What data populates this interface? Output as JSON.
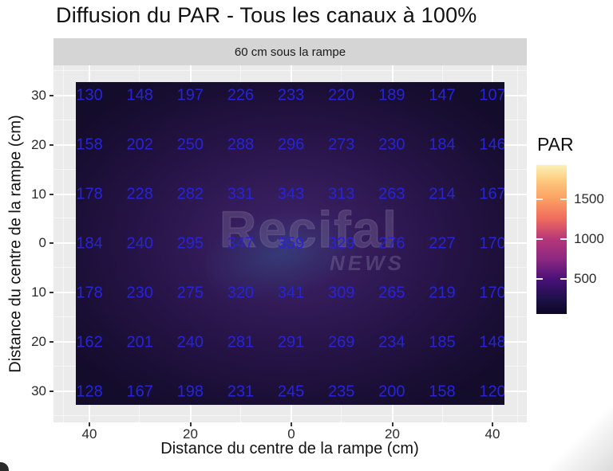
{
  "title": "Diffusion du PAR - Tous les canaux à 100%",
  "facet_label": "60 cm sous la rampe",
  "x_axis": {
    "title": "Distance du centre de la rampe (cm)",
    "ticks": [
      "40",
      "20",
      "0",
      "20",
      "40"
    ]
  },
  "y_axis": {
    "title": "Distance du centre de la rampe (cm)",
    "ticks": [
      "30",
      "20",
      "10",
      "0",
      "10",
      "20",
      "30"
    ]
  },
  "legend": {
    "title": "PAR",
    "ticks": [
      "1500",
      "1000",
      "500"
    ]
  },
  "watermark": {
    "text": "Recifal",
    "subtext": "NEWS"
  },
  "colors": {
    "value_text": "#2525d6",
    "panel_bg": "#ebebeb",
    "strip_bg": "#d5d5d5",
    "raster_center": "#3e2568",
    "raster_edge": "#140c2b",
    "legend_top": "#fcf1b6",
    "legend_1500": "#fb9f62",
    "legend_1000": "#b63679",
    "legend_500": "#481078",
    "legend_bottom": "#0b0723"
  },
  "chart_data": {
    "type": "heatmap",
    "title": "Diffusion du PAR - Tous les canaux à 100%",
    "facet": "60 cm sous la rampe",
    "xlabel": "Distance du centre de la rampe (cm)",
    "ylabel": "Distance du centre de la rampe (cm)",
    "x": [
      -40,
      -30,
      -20,
      -10,
      0,
      10,
      20,
      30,
      40
    ],
    "y": [
      30,
      20,
      10,
      0,
      -10,
      -20,
      -30
    ],
    "values": [
      [
        130,
        148,
        197,
        226,
        233,
        220,
        189,
        147,
        107
      ],
      [
        158,
        202,
        250,
        288,
        296,
        273,
        230,
        184,
        146
      ],
      [
        178,
        228,
        282,
        331,
        343,
        313,
        263,
        214,
        167
      ],
      [
        184,
        240,
        295,
        347,
        359,
        329,
        276,
        227,
        170
      ],
      [
        178,
        230,
        275,
        320,
        341,
        309,
        265,
        219,
        170
      ],
      [
        162,
        201,
        240,
        281,
        291,
        269,
        234,
        185,
        148
      ],
      [
        128,
        167,
        198,
        231,
        245,
        235,
        200,
        158,
        120
      ]
    ],
    "legend_title": "PAR",
    "colorbar_ticks": [
      500,
      1000,
      1500
    ],
    "palette": "magma",
    "value_range_shown": [
      107,
      359
    ],
    "grid": true,
    "legend_position": "right"
  }
}
